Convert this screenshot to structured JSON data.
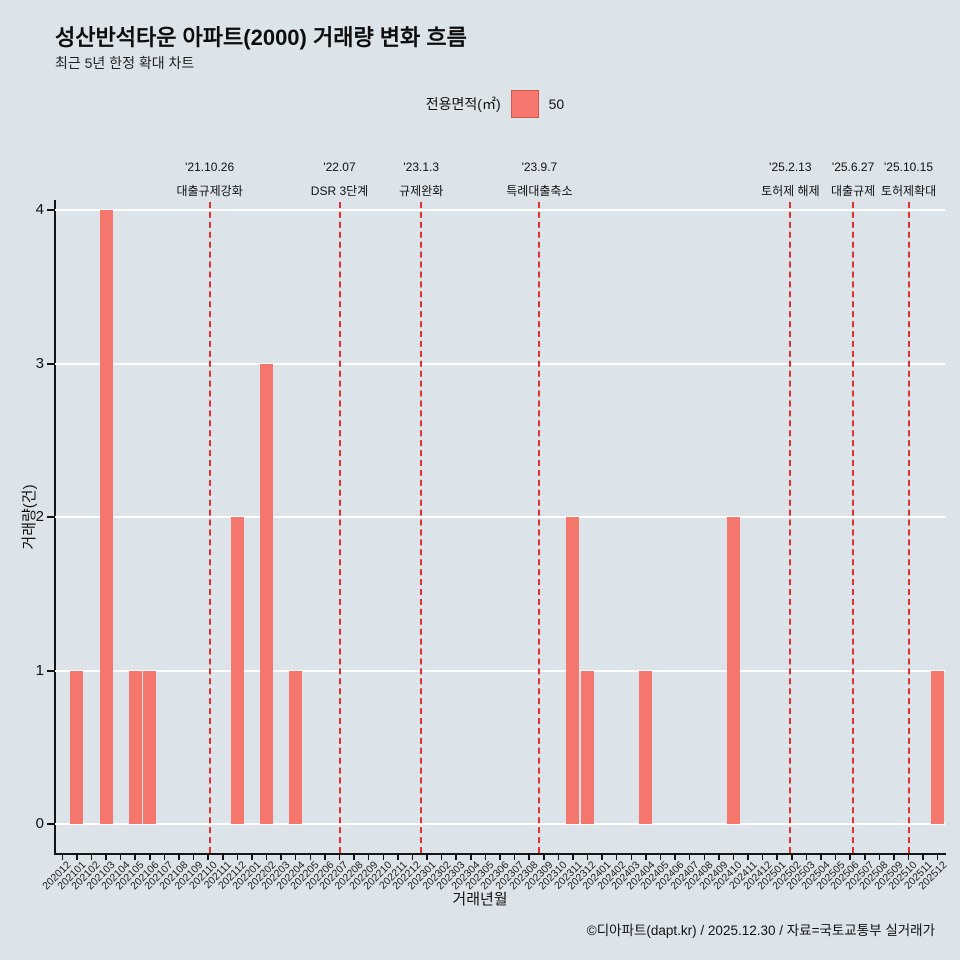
{
  "title": "성산반석타운 아파트(2000) 거래량 변화 흐름",
  "subtitle": "최근 5년 한정 확대 차트",
  "legend": {
    "label": "전용면적(㎡)",
    "value": "50",
    "color": "#f4766d"
  },
  "footer": "©디아파트(dapt.kr) / 2025.12.30 / 자료=국토교통부 실거래가",
  "chart_data": {
    "type": "bar",
    "title": "성산반석타운 아파트(2000) 거래량 변화 흐름",
    "xlabel": "거래년월",
    "ylabel": "거래량(건)",
    "ylim": [
      0,
      4
    ],
    "yticks": [
      0,
      1,
      2,
      3,
      4
    ],
    "grid": "horizontal-white",
    "legend_position": "top-center",
    "background": "#dce3e9",
    "bar_color": "#f4766d",
    "annotation_line_color": "#e03131",
    "series_name": "50",
    "categories": [
      "202012",
      "202101",
      "202102",
      "202103",
      "202104",
      "202105",
      "202106",
      "202107",
      "202108",
      "202109",
      "202110",
      "202111",
      "202112",
      "202201",
      "202202",
      "202203",
      "202204",
      "202205",
      "202206",
      "202207",
      "202208",
      "202209",
      "202210",
      "202211",
      "202212",
      "202301",
      "202302",
      "202303",
      "202304",
      "202305",
      "202306",
      "202307",
      "202308",
      "202309",
      "202310",
      "202311",
      "202312",
      "202401",
      "202402",
      "202403",
      "202404",
      "202405",
      "202406",
      "202407",
      "202408",
      "202409",
      "202410",
      "202411",
      "202412",
      "202501",
      "202502",
      "202503",
      "202504",
      "202505",
      "202506",
      "202507",
      "202508",
      "202509",
      "202510",
      "202511",
      "202512"
    ],
    "values": [
      0,
      1,
      0,
      4,
      0,
      1,
      1,
      0,
      0,
      0,
      0,
      0,
      2,
      0,
      3,
      0,
      1,
      0,
      0,
      0,
      0,
      0,
      0,
      0,
      0,
      0,
      0,
      0,
      0,
      0,
      0,
      0,
      0,
      0,
      0,
      2,
      1,
      0,
      0,
      0,
      1,
      0,
      0,
      0,
      0,
      0,
      2,
      0,
      0,
      0,
      0,
      0,
      0,
      0,
      0,
      0,
      0,
      0,
      0,
      0,
      1
    ],
    "annotations": [
      {
        "date": "'21.10.26",
        "label": "대출규제강화",
        "pos": 10.6
      },
      {
        "date": "'22.07",
        "label": "DSR 3단계",
        "pos": 19.5
      },
      {
        "date": "'23.1.3",
        "label": "규제완화",
        "pos": 25.1
      },
      {
        "date": "'23.9.7",
        "label": "특례대출축소",
        "pos": 33.2
      },
      {
        "date": "'25.2.13",
        "label": "토허제 해제",
        "pos": 50.4
      },
      {
        "date": "'25.6.27",
        "label": "대출규제",
        "pos": 54.7
      },
      {
        "date": "'25.10.15",
        "label": "토허제확대",
        "pos": 58.5
      }
    ]
  }
}
